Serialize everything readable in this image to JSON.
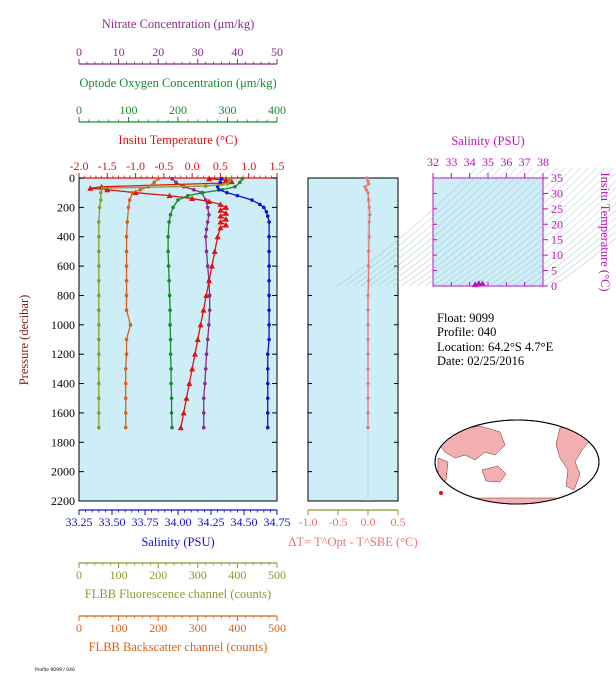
{
  "float_info": {
    "float": "Float:  9099",
    "profile": "Profile:  040",
    "location": "Location:  64.2°S   4.7°E",
    "date": "Date:  02/25/2016"
  },
  "footer_stamp": "Profile 9099 / 040",
  "colors": {
    "nitrate": "#8b2a8b",
    "oxygen": "#1a8a2e",
    "temperature": "#e01010",
    "salinity": "#1010d0",
    "fluorescence": "#8c9a2a",
    "backscatter": "#d8621a",
    "delta_t": "#f07070",
    "panel_bg": "#cdeef6",
    "map_land": "#f4b0b0"
  },
  "chart_data": [
    {
      "type": "line",
      "title": "",
      "y": {
        "label": "Pressure (decibar)",
        "range": [
          0,
          2200
        ],
        "inverted": true,
        "ticks": [
          "0",
          "200",
          "400",
          "600",
          "800",
          "1000",
          "1200",
          "1400",
          "1600",
          "1800",
          "2000",
          "2200"
        ]
      },
      "axes": [
        {
          "key": "nitrate",
          "label": "Nitrate Concentration (μm/kg)",
          "range": [
            0,
            50
          ],
          "ticks": [
            "0",
            "10",
            "20",
            "30",
            "40",
            "50"
          ]
        },
        {
          "key": "oxygen",
          "label": "Optode Oxygen Concentration (μm/kg)",
          "range": [
            0,
            400
          ],
          "ticks": [
            "0",
            "100",
            "200",
            "300",
            "400"
          ]
        },
        {
          "key": "temperature",
          "label": "Insitu Temperature (°C)",
          "range": [
            -2.0,
            1.5
          ],
          "ticks": [
            "-2.0",
            "-1.5",
            "-1.0",
            "-0.5",
            "0.0",
            "0.5",
            "1.0",
            "1.5"
          ]
        },
        {
          "key": "salinity",
          "label": "Salinity (PSU)",
          "range": [
            33.25,
            34.75
          ],
          "ticks": [
            "33.25",
            "33.50",
            "33.75",
            "34.00",
            "34.25",
            "34.50",
            "34.75"
          ]
        },
        {
          "key": "fluorescence",
          "label": "FLBB Fluorescence channel (counts)",
          "range": [
            0,
            500
          ],
          "ticks": [
            "0",
            "100",
            "200",
            "300",
            "400",
            "500"
          ]
        },
        {
          "key": "backscatter",
          "label": "FLBB Backscatter channel (counts)",
          "range": [
            0,
            500
          ],
          "ticks": [
            "0",
            "100",
            "200",
            "300",
            "400",
            "500"
          ]
        }
      ],
      "series": [
        {
          "key": "nitrate",
          "points": [
            [
              23.5,
              5
            ],
            [
              24.5,
              30
            ],
            [
              26.5,
              60
            ],
            [
              29,
              80
            ],
            [
              31,
              100
            ],
            [
              32,
              150
            ],
            [
              32.5,
              200
            ],
            [
              32.8,
              250
            ],
            [
              32.5,
              300
            ],
            [
              32.2,
              350
            ],
            [
              32,
              400
            ],
            [
              32.2,
              500
            ],
            [
              32.5,
              600
            ],
            [
              32.8,
              700
            ],
            [
              33,
              800
            ],
            [
              33,
              900
            ],
            [
              32.8,
              1000
            ],
            [
              32.5,
              1100
            ],
            [
              32.2,
              1200
            ],
            [
              32,
              1300
            ],
            [
              31.8,
              1400
            ],
            [
              31.5,
              1500
            ],
            [
              31.5,
              1600
            ],
            [
              31.5,
              1700
            ]
          ]
        },
        {
          "key": "oxygen",
          "points": [
            [
              330,
              5
            ],
            [
              325,
              30
            ],
            [
              315,
              60
            ],
            [
              290,
              80
            ],
            [
              250,
              100
            ],
            [
              220,
              120
            ],
            [
              200,
              150
            ],
            [
              190,
              200
            ],
            [
              185,
              250
            ],
            [
              182,
              300
            ],
            [
              180,
              400
            ],
            [
              180,
              500
            ],
            [
              181,
              600
            ],
            [
              182,
              700
            ],
            [
              183,
              800
            ],
            [
              184,
              900
            ],
            [
              184,
              1000
            ],
            [
              185,
              1100
            ],
            [
              185,
              1200
            ],
            [
              186,
              1300
            ],
            [
              186,
              1400
            ],
            [
              187,
              1500
            ],
            [
              187,
              1600
            ],
            [
              188,
              1700
            ]
          ]
        },
        {
          "key": "temperature",
          "points": [
            [
              0.3,
              5
            ],
            [
              0.6,
              15
            ],
            [
              0.7,
              25
            ],
            [
              0.5,
              35
            ],
            [
              -1.6,
              60
            ],
            [
              -1.8,
              70
            ],
            [
              -1.5,
              80
            ],
            [
              -1.0,
              100
            ],
            [
              -0.4,
              120
            ],
            [
              0.0,
              140
            ],
            [
              0.3,
              160
            ],
            [
              0.5,
              180
            ],
            [
              0.6,
              200
            ],
            [
              0.5,
              220
            ],
            [
              0.6,
              240
            ],
            [
              0.5,
              260
            ],
            [
              0.6,
              280
            ],
            [
              0.5,
              300
            ],
            [
              0.6,
              320
            ],
            [
              0.5,
              340
            ],
            [
              0.45,
              400
            ],
            [
              0.4,
              500
            ],
            [
              0.35,
              600
            ],
            [
              0.3,
              700
            ],
            [
              0.25,
              800
            ],
            [
              0.2,
              900
            ],
            [
              0.15,
              1000
            ],
            [
              0.1,
              1100
            ],
            [
              0.05,
              1200
            ],
            [
              0.0,
              1300
            ],
            [
              -0.05,
              1400
            ],
            [
              -0.1,
              1500
            ],
            [
              -0.15,
              1600
            ],
            [
              -0.2,
              1700
            ]
          ]
        },
        {
          "key": "salinity",
          "points": [
            [
              34.33,
              5
            ],
            [
              34.32,
              30
            ],
            [
              34.3,
              60
            ],
            [
              34.31,
              80
            ],
            [
              34.37,
              100
            ],
            [
              34.45,
              120
            ],
            [
              34.56,
              150
            ],
            [
              34.62,
              180
            ],
            [
              34.65,
              200
            ],
            [
              34.67,
              230
            ],
            [
              34.68,
              260
            ],
            [
              34.69,
              300
            ],
            [
              34.69,
              400
            ],
            [
              34.69,
              500
            ],
            [
              34.69,
              600
            ],
            [
              34.69,
              700
            ],
            [
              34.69,
              800
            ],
            [
              34.69,
              900
            ],
            [
              34.69,
              1000
            ],
            [
              34.69,
              1100
            ],
            [
              34.68,
              1200
            ],
            [
              34.68,
              1300
            ],
            [
              34.68,
              1400
            ],
            [
              34.68,
              1500
            ],
            [
              34.68,
              1600
            ],
            [
              34.68,
              1700
            ]
          ]
        },
        {
          "key": "fluorescence",
          "points": [
            [
              380,
              5
            ],
            [
              380,
              20
            ],
            [
              375,
              40
            ],
            [
              320,
              55
            ],
            [
              60,
              70
            ],
            [
              55,
              100
            ],
            [
              55,
              150
            ],
            [
              52,
              200
            ],
            [
              50,
              300
            ],
            [
              50,
              400
            ],
            [
              50,
              500
            ],
            [
              50,
              600
            ],
            [
              50,
              700
            ],
            [
              50,
              800
            ],
            [
              50,
              900
            ],
            [
              50,
              1000
            ],
            [
              50,
              1100
            ],
            [
              50,
              1200
            ],
            [
              50,
              1300
            ],
            [
              50,
              1400
            ],
            [
              50,
              1500
            ],
            [
              50,
              1600
            ],
            [
              50,
              1700
            ]
          ]
        },
        {
          "key": "backscatter",
          "points": [
            [
              200,
              5
            ],
            [
              190,
              30
            ],
            [
              175,
              60
            ],
            [
              155,
              80
            ],
            [
              135,
              100
            ],
            [
              128,
              150
            ],
            [
              125,
              200
            ],
            [
              122,
              300
            ],
            [
              120,
              400
            ],
            [
              120,
              500
            ],
            [
              120,
              600
            ],
            [
              120,
              700
            ],
            [
              120,
              800
            ],
            [
              120,
              900
            ],
            [
              130,
              1000
            ],
            [
              120,
              1100
            ],
            [
              120,
              1200
            ],
            [
              118,
              1300
            ],
            [
              118,
              1400
            ],
            [
              118,
              1500
            ],
            [
              118,
              1600
            ],
            [
              118,
              1700
            ]
          ]
        }
      ]
    },
    {
      "type": "line",
      "title": "",
      "xlabel": "ΔT= T^Opt - T^SBE (°C)",
      "xlim": [
        -1.0,
        0.5
      ],
      "x_ticks": [
        "-1.0",
        "-0.5",
        "0.0",
        "0.5"
      ],
      "ylim": [
        0,
        2200
      ],
      "series": [
        {
          "key": "delta_t",
          "points": [
            [
              -0.02,
              0
            ],
            [
              0.0,
              20
            ],
            [
              0.01,
              40
            ],
            [
              -0.05,
              60
            ],
            [
              -0.03,
              80
            ],
            [
              0.0,
              100
            ],
            [
              0.01,
              150
            ],
            [
              0.02,
              200
            ],
            [
              0.03,
              250
            ],
            [
              0.02,
              300
            ],
            [
              0.02,
              400
            ],
            [
              0.01,
              500
            ],
            [
              0.01,
              600
            ],
            [
              0.01,
              700
            ],
            [
              0.0,
              800
            ],
            [
              0.0,
              900
            ],
            [
              0.0,
              1000
            ],
            [
              0.0,
              1100
            ],
            [
              0.0,
              1200
            ],
            [
              0.0,
              1300
            ],
            [
              0.0,
              1400
            ],
            [
              0.0,
              1500
            ],
            [
              0.0,
              1600
            ],
            [
              0.0,
              1700
            ]
          ]
        }
      ]
    },
    {
      "type": "scatter",
      "title": "",
      "xlabel": "Salinity (PSU)",
      "ylabel": "Insitu Temperature (°C)",
      "xlim": [
        32,
        38
      ],
      "ylim": [
        0,
        35
      ],
      "x_ticks": [
        "32",
        "33",
        "34",
        "35",
        "36",
        "37",
        "38"
      ],
      "y_ticks": [
        "0",
        "5",
        "10",
        "15",
        "20",
        "25",
        "30",
        "35"
      ],
      "points": [
        [
          34.3,
          0.3
        ],
        [
          34.5,
          0.6
        ],
        [
          34.7,
          0.5
        ]
      ]
    }
  ]
}
